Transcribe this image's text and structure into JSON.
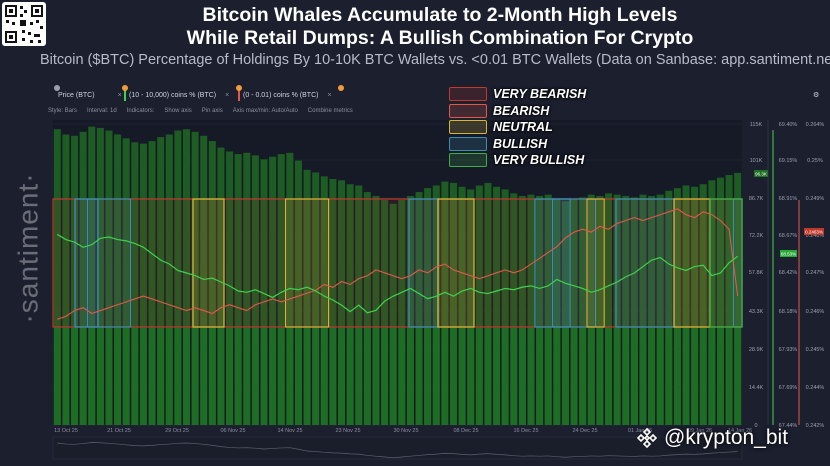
{
  "header": {
    "title_line1": "Bitcoin Whales Accumulate to 2-Month High Levels",
    "title_line2": "While Retail Dumps: A Bullish Combination For Crypto",
    "subtitle": "Bitcoin ($BTC) Percentage of Holdings By 10-10K BTC Wallets vs. <0.01 BTC Wallets (Data on Sanbase: app.santiment.net)"
  },
  "toolbar": {
    "metric1": "Price (BTC)",
    "metric2": "(10 - 10,000) coins % (BTC)",
    "metric3": "(0 - 0.01) coins % (BTC)",
    "style": "Style: Bars",
    "interval": "Interval: 1d",
    "indicators": "Indicators:",
    "show_axis": "Show axis",
    "pin_axis": "Pin axis",
    "axis_max_min": "Axis max/min: Auto/Auto",
    "combine": "Combine metrics"
  },
  "legend": [
    {
      "label": "VERY BEARISH",
      "color": "#c0392b"
    },
    {
      "label": "BEARISH",
      "color": "#e0584a"
    },
    {
      "label": "NEUTRAL",
      "color": "#d4b43a"
    },
    {
      "label": "BULLISH",
      "color": "#3a8fb0"
    },
    {
      "label": "VERY BULLISH",
      "color": "#3fae4a"
    }
  ],
  "watermark": "·santiment·",
  "brand": "@krypton_bit",
  "axes": {
    "price_ticks": [
      "115K",
      "101K",
      "86.7K",
      "72.2K",
      "57.8K",
      "43.3K",
      "28.9K",
      "14.4K",
      "0"
    ],
    "whale_ticks": [
      "69.40%",
      "69.15%",
      "68.91%",
      "68.67%",
      "68.42%",
      "68.18%",
      "67.93%",
      "67.69%",
      "67.44%"
    ],
    "retail_ticks": [
      "0.264%",
      "0.25%",
      "0.249%",
      "0.248%",
      "0.247%",
      "0.246%",
      "0.245%",
      "0.244%",
      "0.242%"
    ],
    "price_tag": "96.3K",
    "whale_tag": "68.53%",
    "retail_tag": "0.2463%",
    "x_ticks": [
      "13 Oct 25",
      "21 Oct 25",
      "29 Oct 25",
      "06 Nov 25",
      "14 Nov 25",
      "23 Nov 25",
      "30 Nov 25",
      "08 Dec 25",
      "16 Dec 25",
      "24 Dec 25",
      "01 Jan 26",
      "09 Jan 26",
      "14 Jan 26"
    ]
  },
  "chart_data": {
    "type": "bar",
    "title": "Bitcoin Whales Accumulate to 2-Month High Levels While Retail Dumps: A Bullish Combination For Crypto",
    "series": [
      {
        "name": "Price (BTC)",
        "type": "bar",
        "values": [
          113000,
          111000,
          110500,
          112000,
          114000,
          113500,
          112500,
          111000,
          109500,
          108000,
          107500,
          108500,
          110000,
          111000,
          112500,
          113000,
          112000,
          110500,
          108500,
          106000,
          104500,
          103500,
          104000,
          103000,
          101500,
          102500,
          103500,
          104000,
          101000,
          97500,
          96500,
          95000,
          94000,
          93500,
          92000,
          91500,
          89000,
          87500,
          86000,
          84500,
          86000,
          87500,
          89000,
          90500,
          91500,
          93000,
          92500,
          91000,
          90000,
          91500,
          92500,
          91000,
          90000,
          88500,
          87500,
          88000,
          87500,
          88000,
          86500,
          85500,
          86500,
          87000,
          88000,
          87500,
          88500,
          88000,
          87500,
          87000,
          88000,
          87500,
          88000,
          89500,
          90500,
          91500,
          91000,
          92000,
          93500,
          94500,
          95500,
          96300
        ]
      },
      {
        "name": "(10 - 10,000) coins % (BTC)",
        "type": "line",
        "values": [
          68.7,
          68.66,
          68.64,
          68.6,
          68.62,
          68.67,
          68.68,
          68.66,
          68.65,
          68.63,
          68.6,
          68.55,
          68.5,
          68.47,
          68.42,
          68.4,
          68.38,
          68.35,
          68.36,
          68.33,
          68.3,
          68.26,
          68.25,
          68.27,
          68.24,
          68.21,
          68.25,
          68.28,
          68.27,
          68.29,
          68.26,
          68.22,
          68.19,
          68.15,
          68.1,
          68.15,
          68.09,
          68.11,
          68.18,
          68.22,
          68.25,
          68.28,
          68.24,
          68.2,
          68.22,
          68.25,
          68.22,
          68.26,
          68.28,
          68.25,
          68.24,
          68.26,
          68.28,
          68.27,
          68.29,
          68.3,
          68.28,
          68.3,
          68.35,
          68.32,
          68.3,
          68.28,
          68.25,
          68.27,
          68.3,
          68.33,
          68.37,
          68.4,
          68.45,
          68.5,
          68.52,
          68.47,
          68.44,
          68.42,
          68.45,
          68.46,
          68.38,
          68.4,
          68.48,
          68.53
        ]
      },
      {
        "name": "(0 - 0.01) coins % (BTC)",
        "type": "line",
        "values": [
          0.2455,
          0.2456,
          0.2458,
          0.2459,
          0.2457,
          0.2458,
          0.2459,
          0.246,
          0.2461,
          0.2462,
          0.2463,
          0.2462,
          0.2461,
          0.246,
          0.2459,
          0.2458,
          0.2459,
          0.2458,
          0.2457,
          0.2459,
          0.246,
          0.2459,
          0.2458,
          0.246,
          0.2461,
          0.2462,
          0.2461,
          0.2462,
          0.2463,
          0.2464,
          0.2465,
          0.2467,
          0.2466,
          0.2468,
          0.2467,
          0.2469,
          0.247,
          0.2472,
          0.2471,
          0.247,
          0.2469,
          0.247,
          0.2472,
          0.2471,
          0.2473,
          0.2474,
          0.2472,
          0.2471,
          0.247,
          0.2469,
          0.247,
          0.2471,
          0.2472,
          0.2471,
          0.2472,
          0.2474,
          0.2476,
          0.2478,
          0.248,
          0.2483,
          0.2485,
          0.2486,
          0.2485,
          0.2487,
          0.2486,
          0.2488,
          0.2489,
          0.249,
          0.2489,
          0.249,
          0.2491,
          0.2492,
          0.2493,
          0.2491,
          0.249,
          0.2492,
          0.2491,
          0.2489,
          0.2486,
          0.2463
        ]
      }
    ],
    "zones": [
      {
        "sentiment": "VERY BEARISH",
        "from_index": 0,
        "to_index": 79
      },
      {
        "sentiment": "BULLISH",
        "from_index": 4,
        "to_index": 8
      },
      {
        "sentiment": "NEUTRAL",
        "from_index": 27,
        "to_index": 31
      },
      {
        "sentiment": "BULLISH",
        "from_index": 58,
        "to_index": 62
      },
      {
        "sentiment": "NEUTRAL",
        "from_index": 62,
        "to_index": 63
      },
      {
        "sentiment": "BULLISH",
        "from_index": 79,
        "to_index": 79
      }
    ]
  }
}
